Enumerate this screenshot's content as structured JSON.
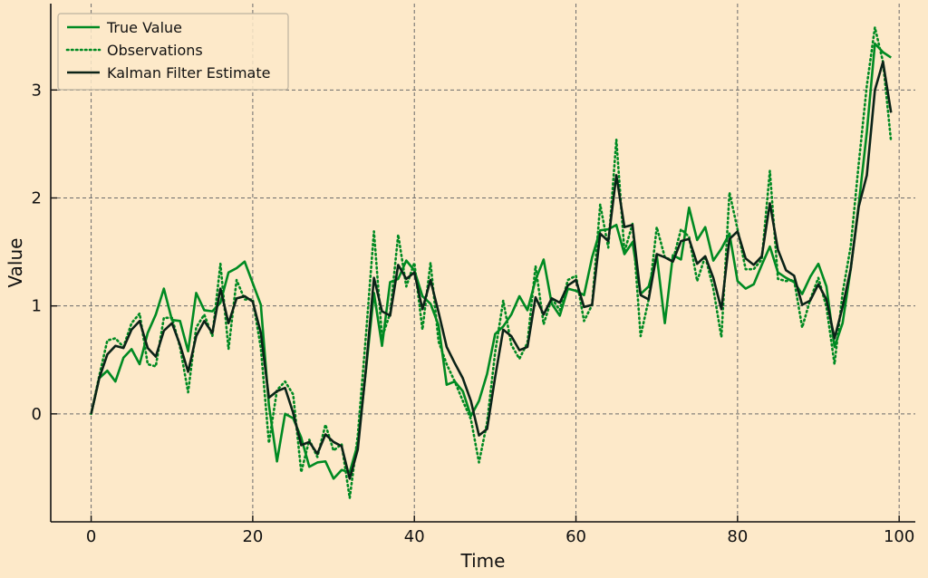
{
  "chart_data": {
    "type": "line",
    "xlabel": "Time",
    "ylabel": "Value",
    "xlim": [
      -5,
      102
    ],
    "ylim": [
      -1.0,
      3.8
    ],
    "xticks": [
      0,
      20,
      40,
      60,
      80,
      100
    ],
    "yticks": [
      0,
      1,
      2,
      3
    ],
    "grid": true,
    "legend_position": "top-left",
    "series": [
      {
        "name": "True Value",
        "color": "#008a22",
        "style": "solid",
        "values": [
          0.0,
          0.33,
          0.4,
          0.3,
          0.52,
          0.6,
          0.46,
          0.75,
          0.92,
          1.16,
          0.87,
          0.86,
          0.58,
          1.12,
          0.96,
          0.95,
          1.03,
          1.31,
          1.35,
          1.41,
          1.21,
          1.01,
          0.08,
          -0.44,
          0.0,
          -0.04,
          -0.22,
          -0.49,
          -0.45,
          -0.44,
          -0.6,
          -0.52,
          -0.54,
          -0.28,
          0.4,
          1.12,
          0.63,
          1.22,
          1.25,
          1.42,
          1.33,
          1.09,
          1.02,
          0.82,
          0.27,
          0.3,
          0.21,
          -0.02,
          0.12,
          0.37,
          0.74,
          0.81,
          0.92,
          1.09,
          0.96,
          1.24,
          1.43,
          1.02,
          0.91,
          1.16,
          1.14,
          1.1,
          1.45,
          1.7,
          1.71,
          1.75,
          1.48,
          1.59,
          1.11,
          1.18,
          1.47,
          0.84,
          1.47,
          1.43,
          1.91,
          1.61,
          1.73,
          1.42,
          1.53,
          1.67,
          1.23,
          1.16,
          1.2,
          1.38,
          1.55,
          1.31,
          1.26,
          1.22,
          1.11,
          1.27,
          1.39,
          1.18,
          0.62,
          0.84,
          1.34,
          1.94,
          2.61,
          3.43,
          3.35,
          3.3
        ]
      },
      {
        "name": "Observations",
        "color": "#008a22",
        "style": "dotted",
        "values": [
          0.0,
          0.35,
          0.68,
          0.7,
          0.62,
          0.84,
          0.93,
          0.46,
          0.44,
          0.89,
          0.89,
          0.62,
          0.2,
          0.8,
          0.92,
          0.72,
          1.39,
          0.6,
          1.24,
          1.06,
          1.06,
          0.61,
          -0.27,
          0.22,
          0.3,
          0.18,
          -0.54,
          -0.24,
          -0.4,
          -0.1,
          -0.34,
          -0.28,
          -0.78,
          -0.2,
          0.72,
          1.69,
          0.71,
          0.93,
          1.66,
          1.18,
          1.4,
          0.78,
          1.4,
          0.67,
          0.46,
          0.3,
          0.12,
          -0.05,
          -0.45,
          -0.08,
          0.57,
          1.05,
          0.64,
          0.51,
          0.66,
          1.37,
          0.83,
          1.07,
          0.96,
          1.24,
          1.28,
          0.86,
          1.01,
          1.94,
          1.54,
          2.54,
          1.5,
          1.76,
          0.72,
          1.06,
          1.73,
          1.45,
          1.42,
          1.71,
          1.64,
          1.23,
          1.46,
          1.16,
          0.71,
          2.05,
          1.71,
          1.34,
          1.34,
          1.43,
          2.25,
          1.25,
          1.23,
          1.24,
          0.8,
          1.06,
          1.26,
          0.99,
          0.46,
          1.12,
          1.55,
          2.32,
          3.04,
          3.58,
          3.26,
          2.52
        ]
      },
      {
        "name": "Kalman Filter Estimate",
        "color": "#0b2318",
        "style": "solid",
        "values": [
          0.0,
          0.33,
          0.55,
          0.63,
          0.61,
          0.78,
          0.86,
          0.61,
          0.53,
          0.77,
          0.84,
          0.64,
          0.39,
          0.72,
          0.86,
          0.75,
          1.16,
          0.84,
          1.07,
          1.09,
          1.04,
          0.75,
          0.15,
          0.21,
          0.24,
          0.01,
          -0.29,
          -0.26,
          -0.37,
          -0.19,
          -0.26,
          -0.3,
          -0.6,
          -0.33,
          0.41,
          1.26,
          0.95,
          0.91,
          1.38,
          1.25,
          1.31,
          0.97,
          1.24,
          0.94,
          0.62,
          0.47,
          0.33,
          0.12,
          -0.2,
          -0.14,
          0.34,
          0.78,
          0.72,
          0.59,
          0.62,
          1.08,
          0.92,
          1.07,
          1.03,
          1.19,
          1.24,
          0.99,
          1.01,
          1.67,
          1.6,
          2.21,
          1.73,
          1.75,
          1.1,
          1.06,
          1.48,
          1.45,
          1.41,
          1.6,
          1.62,
          1.39,
          1.46,
          1.26,
          0.97,
          1.62,
          1.69,
          1.44,
          1.38,
          1.46,
          1.95,
          1.52,
          1.33,
          1.28,
          1.01,
          1.05,
          1.2,
          1.06,
          0.7,
          0.99,
          1.34,
          1.92,
          2.21,
          3.0,
          3.26,
          2.79
        ]
      }
    ]
  }
}
